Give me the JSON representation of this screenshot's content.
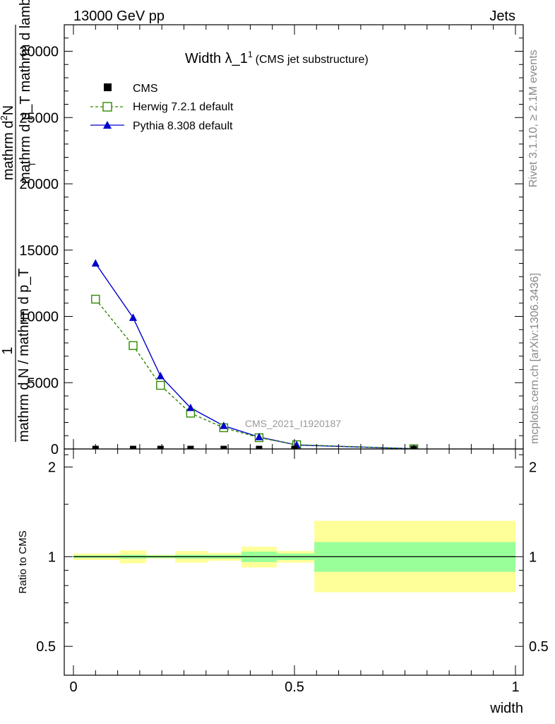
{
  "header": {
    "left": "13000 GeV pp",
    "right": "Jets"
  },
  "side_text": {
    "rivet": "Rivet 3.1.10, ≥ 2.1M events",
    "mcplots": "mcplots.cern.ch [arXiv:1306.3436]"
  },
  "watermark": "CMS_2021_I1920187",
  "colors": {
    "herwig": "#2e8b00",
    "pythia": "#0000cc",
    "band_inner": "#99ff99",
    "band_outer": "#ffff99"
  },
  "chart_data": [
    {
      "type": "line",
      "title": "Width λ_1¹ (CMS jet substructure)",
      "title_parts": {
        "main": "Width λ_1",
        "sup": "1",
        "sub": "(CMS jet substructure)"
      },
      "ylabel_parts": {
        "one": "1",
        "frac_top_main": "mathrm d",
        "frac_top_sup": "2",
        "frac_top_rest": "N",
        "frac_bottom": "mathrm d p_T mathrm d lambda",
        "frac_bottom_sub": "T",
        "denominator": "mathrm d N / mathrm d p_T",
        "denominator_sub": "T"
      },
      "xlim": [
        0,
        1
      ],
      "ylim": [
        0,
        32000
      ],
      "yticks": [
        {
          "value": 0,
          "label": "0"
        },
        {
          "value": 5000,
          "label": "5000"
        },
        {
          "value": 10000,
          "label": "10000"
        },
        {
          "value": 15000,
          "label": "15000"
        },
        {
          "value": 20000,
          "label": "20000"
        },
        {
          "value": 25000,
          "label": "25000"
        },
        {
          "value": 30000,
          "label": "30000"
        }
      ],
      "legend": {
        "placement": "top-left",
        "entries": [
          "CMS",
          "Herwig 7.2.1 default",
          "Pythia 8.308 default"
        ]
      },
      "series": [
        {
          "name": "CMS",
          "x": [
            0.05,
            0.135,
            0.197,
            0.265,
            0.34,
            0.42,
            0.5,
            0.77
          ],
          "values": [
            0,
            0,
            0,
            0,
            0,
            0,
            0,
            0
          ]
        },
        {
          "name": "Herwig 7.2.1 default",
          "x": [
            0.05,
            0.135,
            0.197,
            0.265,
            0.34,
            0.42,
            0.505,
            0.77
          ],
          "values": [
            11300,
            7800,
            4800,
            2700,
            1600,
            850,
            320,
            15
          ]
        },
        {
          "name": "Pythia 8.308 default",
          "x": [
            0.05,
            0.135,
            0.197,
            0.265,
            0.34,
            0.42,
            0.505,
            0.77
          ],
          "values": [
            14000,
            9900,
            5500,
            3100,
            1750,
            900,
            300,
            15
          ]
        }
      ]
    },
    {
      "type": "area",
      "ylabel": "Ratio to CMS",
      "xlabel": "width",
      "xlim": [
        0,
        1
      ],
      "ylim": [
        0.4,
        2.3
      ],
      "yscale": "log",
      "xticks": [
        {
          "value": 0,
          "label": "0"
        },
        {
          "value": 0.5,
          "label": "0.5"
        },
        {
          "value": 1,
          "label": "1"
        }
      ],
      "yticks": [
        {
          "value": 0.5,
          "label": "0.5"
        },
        {
          "value": 1,
          "label": "1"
        },
        {
          "value": 2,
          "label": "2"
        }
      ],
      "bands": [
        {
          "x0": 0.0,
          "x1": 0.105,
          "inner": [
            0.99,
            1.01
          ],
          "outer": [
            0.975,
            1.025
          ]
        },
        {
          "x0": 0.105,
          "x1": 0.165,
          "inner": [
            0.985,
            1.015
          ],
          "outer": [
            0.95,
            1.05
          ]
        },
        {
          "x0": 0.165,
          "x1": 0.23,
          "inner": [
            0.99,
            1.01
          ],
          "outer": [
            0.985,
            1.015
          ]
        },
        {
          "x0": 0.23,
          "x1": 0.305,
          "inner": [
            0.985,
            1.015
          ],
          "outer": [
            0.955,
            1.045
          ]
        },
        {
          "x0": 0.305,
          "x1": 0.38,
          "inner": [
            0.985,
            1.015
          ],
          "outer": [
            0.97,
            1.03
          ]
        },
        {
          "x0": 0.38,
          "x1": 0.46,
          "inner": [
            0.96,
            1.04
          ],
          "outer": [
            0.92,
            1.08
          ]
        },
        {
          "x0": 0.46,
          "x1": 0.545,
          "inner": [
            0.975,
            1.025
          ],
          "outer": [
            0.955,
            1.045
          ]
        },
        {
          "x0": 0.545,
          "x1": 1.0,
          "inner": [
            0.89,
            1.12
          ],
          "outer": [
            0.76,
            1.32
          ]
        }
      ],
      "reference": 1
    }
  ]
}
